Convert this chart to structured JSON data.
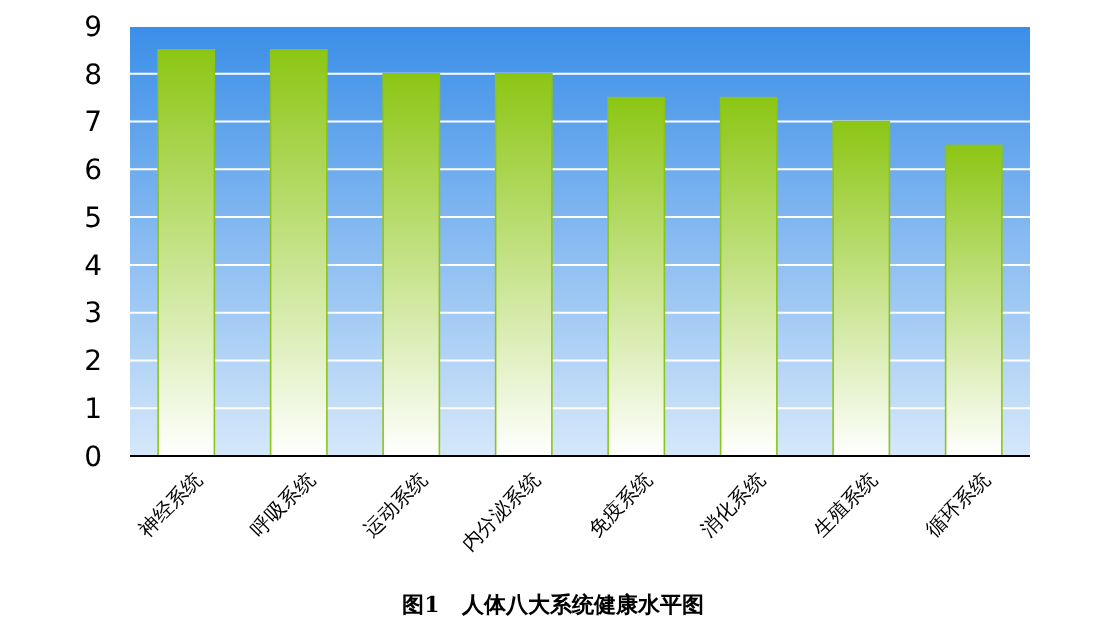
{
  "chart_data": {
    "type": "bar",
    "title": "图1　人体八大系统健康水平图",
    "categories": [
      "神经系统",
      "呼吸系统",
      "运动系统",
      "内分泌系统",
      "免疫系统",
      "消化系统",
      "生殖系统",
      "循环系统"
    ],
    "values": [
      8.5,
      8.5,
      8,
      8,
      7.5,
      7.5,
      7,
      6.5
    ],
    "color": "#8cc614",
    "ylim": [
      0,
      9
    ],
    "yticks": [
      0,
      1,
      2,
      3,
      4,
      5,
      6,
      7,
      8,
      9
    ],
    "grid": "y"
  }
}
